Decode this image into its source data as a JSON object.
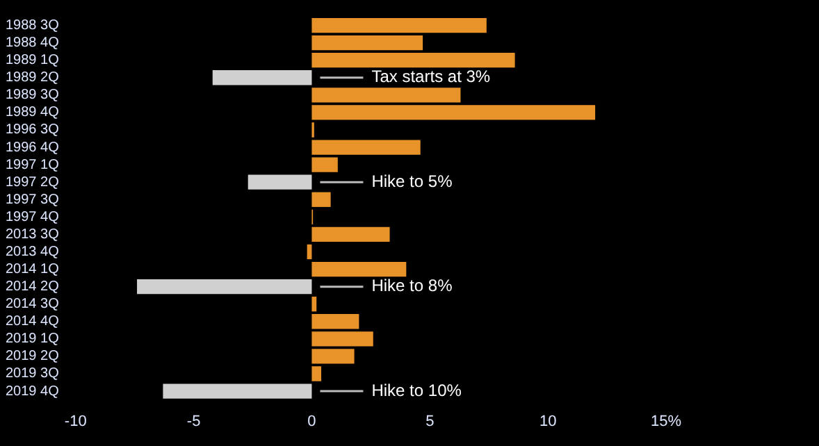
{
  "chart_data": {
    "type": "bar",
    "orientation": "horizontal",
    "categories": [
      "1988 3Q",
      "1988 4Q",
      "1989 1Q",
      "1989 2Q",
      "1989 3Q",
      "1989 4Q",
      "1996 3Q",
      "1996 4Q",
      "1997 1Q",
      "1997 2Q",
      "1997 3Q",
      "1997 4Q",
      "2013 3Q",
      "2013 4Q",
      "2014 1Q",
      "2014 2Q",
      "2014 3Q",
      "2014 4Q",
      "2019 1Q",
      "2019 2Q",
      "2019 3Q",
      "2019 4Q"
    ],
    "values": [
      7.4,
      4.7,
      8.6,
      -4.2,
      6.3,
      12.0,
      0.1,
      4.6,
      1.1,
      -2.7,
      0.8,
      0.05,
      3.3,
      -0.2,
      4.0,
      -7.4,
      0.2,
      2.0,
      2.6,
      1.8,
      0.4,
      -6.3
    ],
    "colors": [
      "#e8922a",
      "#e8922a",
      "#e8922a",
      "#d0d0d0",
      "#e8922a",
      "#e8922a",
      "#e8922a",
      "#e8922a",
      "#e8922a",
      "#d0d0d0",
      "#e8922a",
      "#e8922a",
      "#e8922a",
      "#e8922a",
      "#e8922a",
      "#d0d0d0",
      "#e8922a",
      "#e8922a",
      "#e8922a",
      "#e8922a",
      "#e8922a",
      "#d0d0d0"
    ],
    "xlim": [
      -10,
      15
    ],
    "xticks": [
      -10,
      -5,
      0,
      5,
      10,
      {
        "value": 15,
        "label": "15%"
      }
    ],
    "grid": false,
    "legend": false,
    "annotations": [
      "Tax starts at 3%",
      "Hike to 5%",
      "Hike to 8%",
      "Hike to 10%"
    ]
  }
}
